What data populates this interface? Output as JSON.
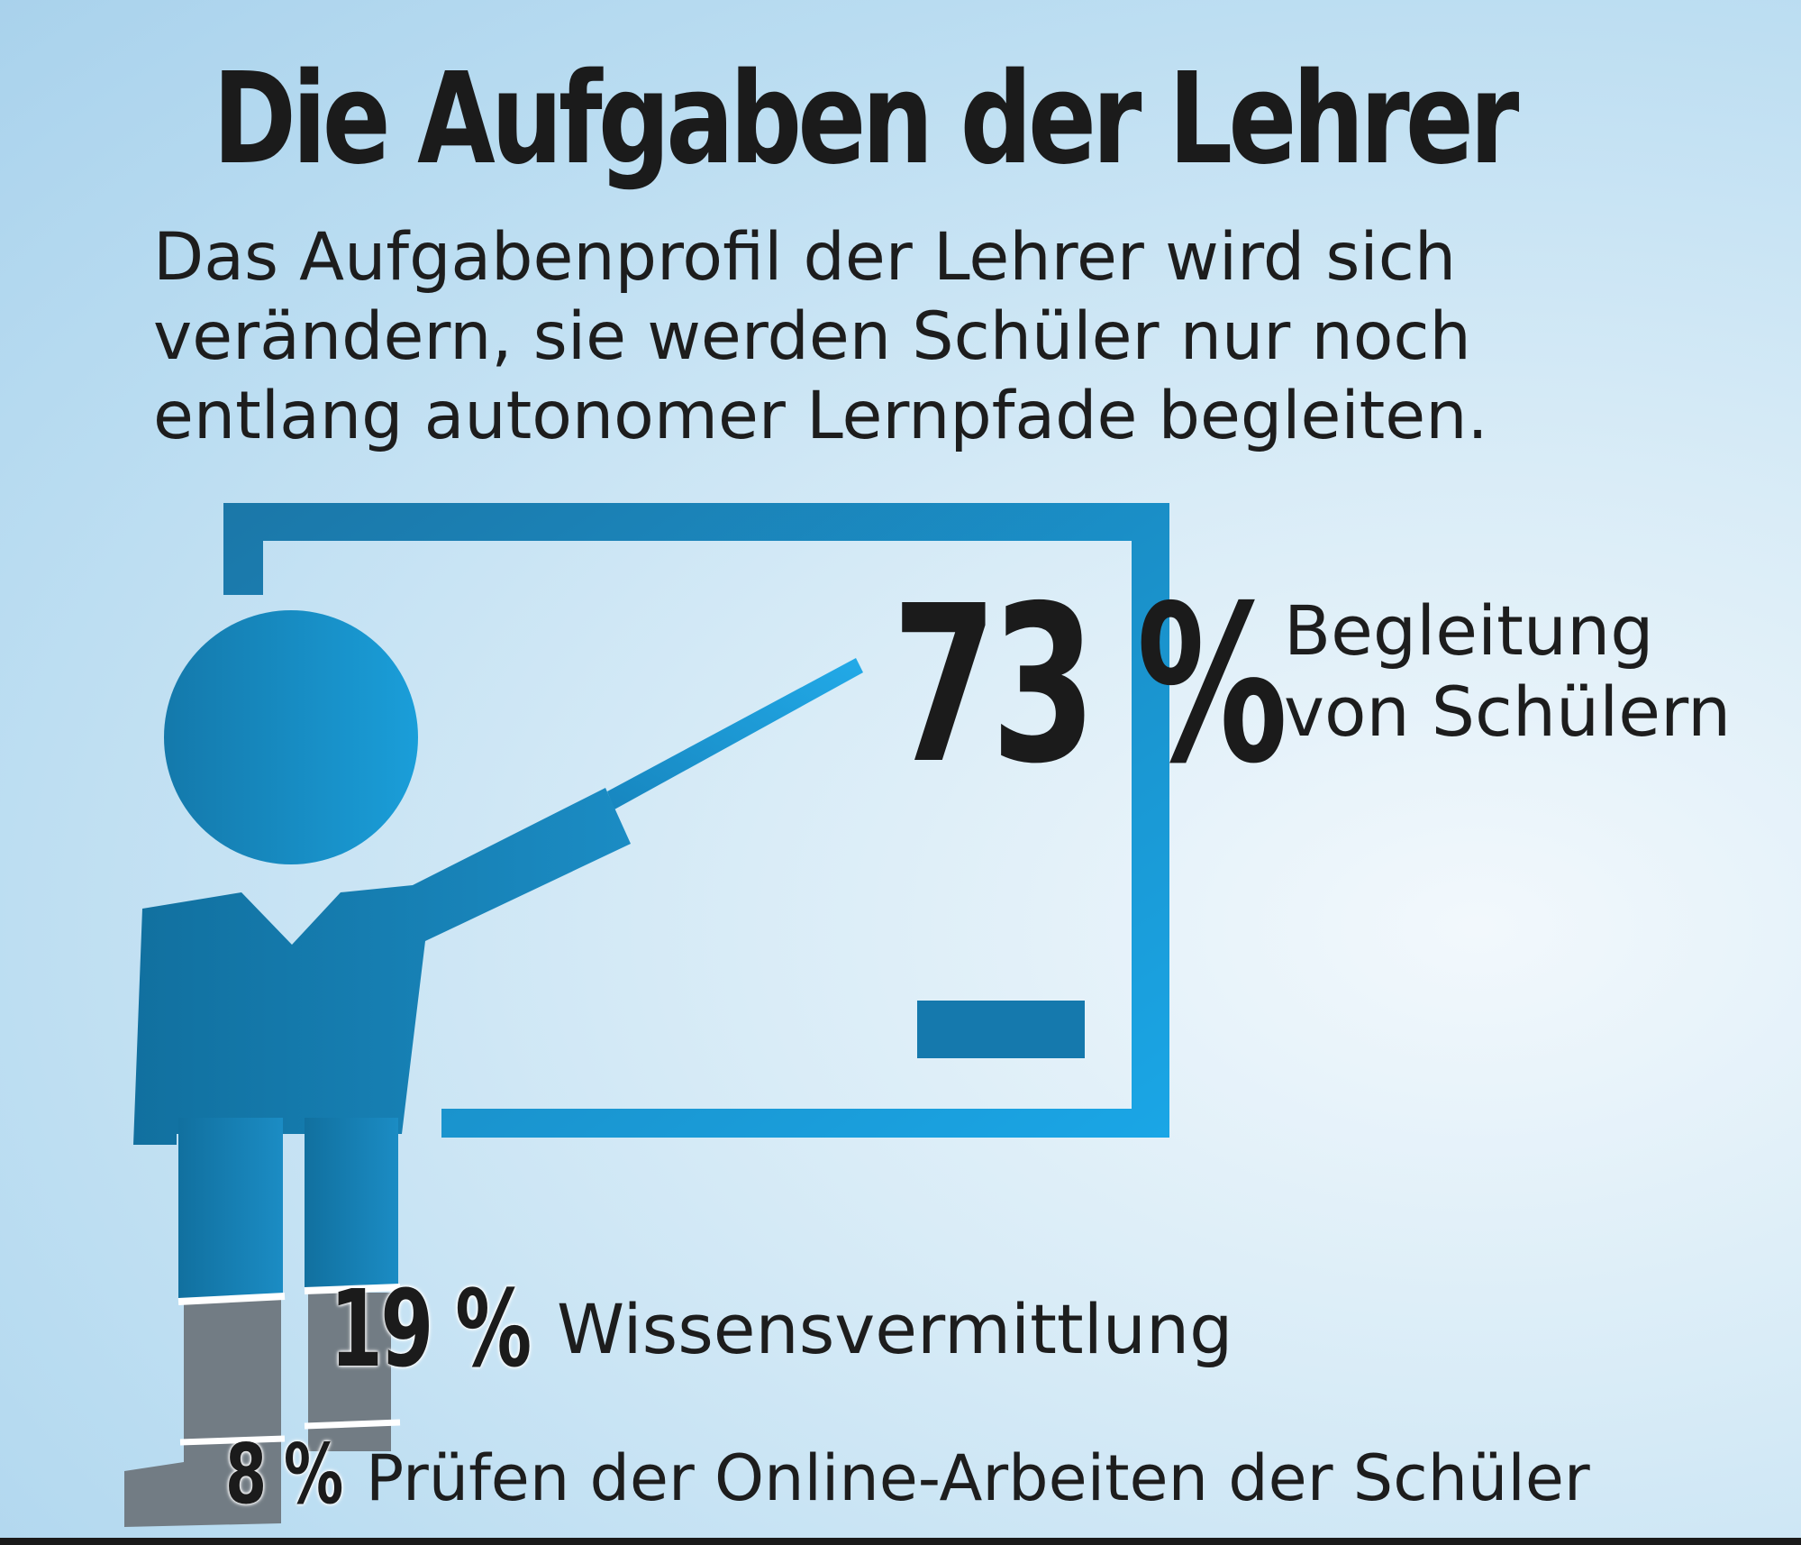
{
  "title": "Die Aufgaben der Lehrer",
  "subtitle": "Das Aufgabenprofil der Lehrer wird sich\nverändern, sie werden Schüler nur noch\nentlang autonomer Lernpfade begleiten.",
  "chart_data": {
    "type": "table",
    "title": "Die Aufgaben der Lehrer",
    "subtitle": "Das Aufgabenprofil der Lehrer wird sich verändern, sie werden Schüler nur noch entlang autonomer Lernpfade begleiten.",
    "categories": [
      "Begleitung von Schülern",
      "Wissensvermittlung",
      "Prüfen der Online-Arbeiten der Schüler"
    ],
    "values": [
      73,
      19,
      8
    ],
    "unit": "%",
    "items": [
      {
        "value_text": "73 %",
        "label": "Begleitung\nvon Schülern"
      },
      {
        "value_text": "19 %",
        "label": "Wissensvermittlung"
      },
      {
        "value_text": "8 %",
        "label": "Prüfen der Online-Arbeiten der Schüler"
      }
    ]
  },
  "colors": {
    "figure_blue": "#1274a7",
    "board_blue": "#1a9ad6",
    "leg_grey": "#727c84",
    "text": "#1c1c1c"
  },
  "icons": [
    "teacher-figure-icon",
    "whiteboard-icon",
    "pointer-stick-icon"
  ]
}
